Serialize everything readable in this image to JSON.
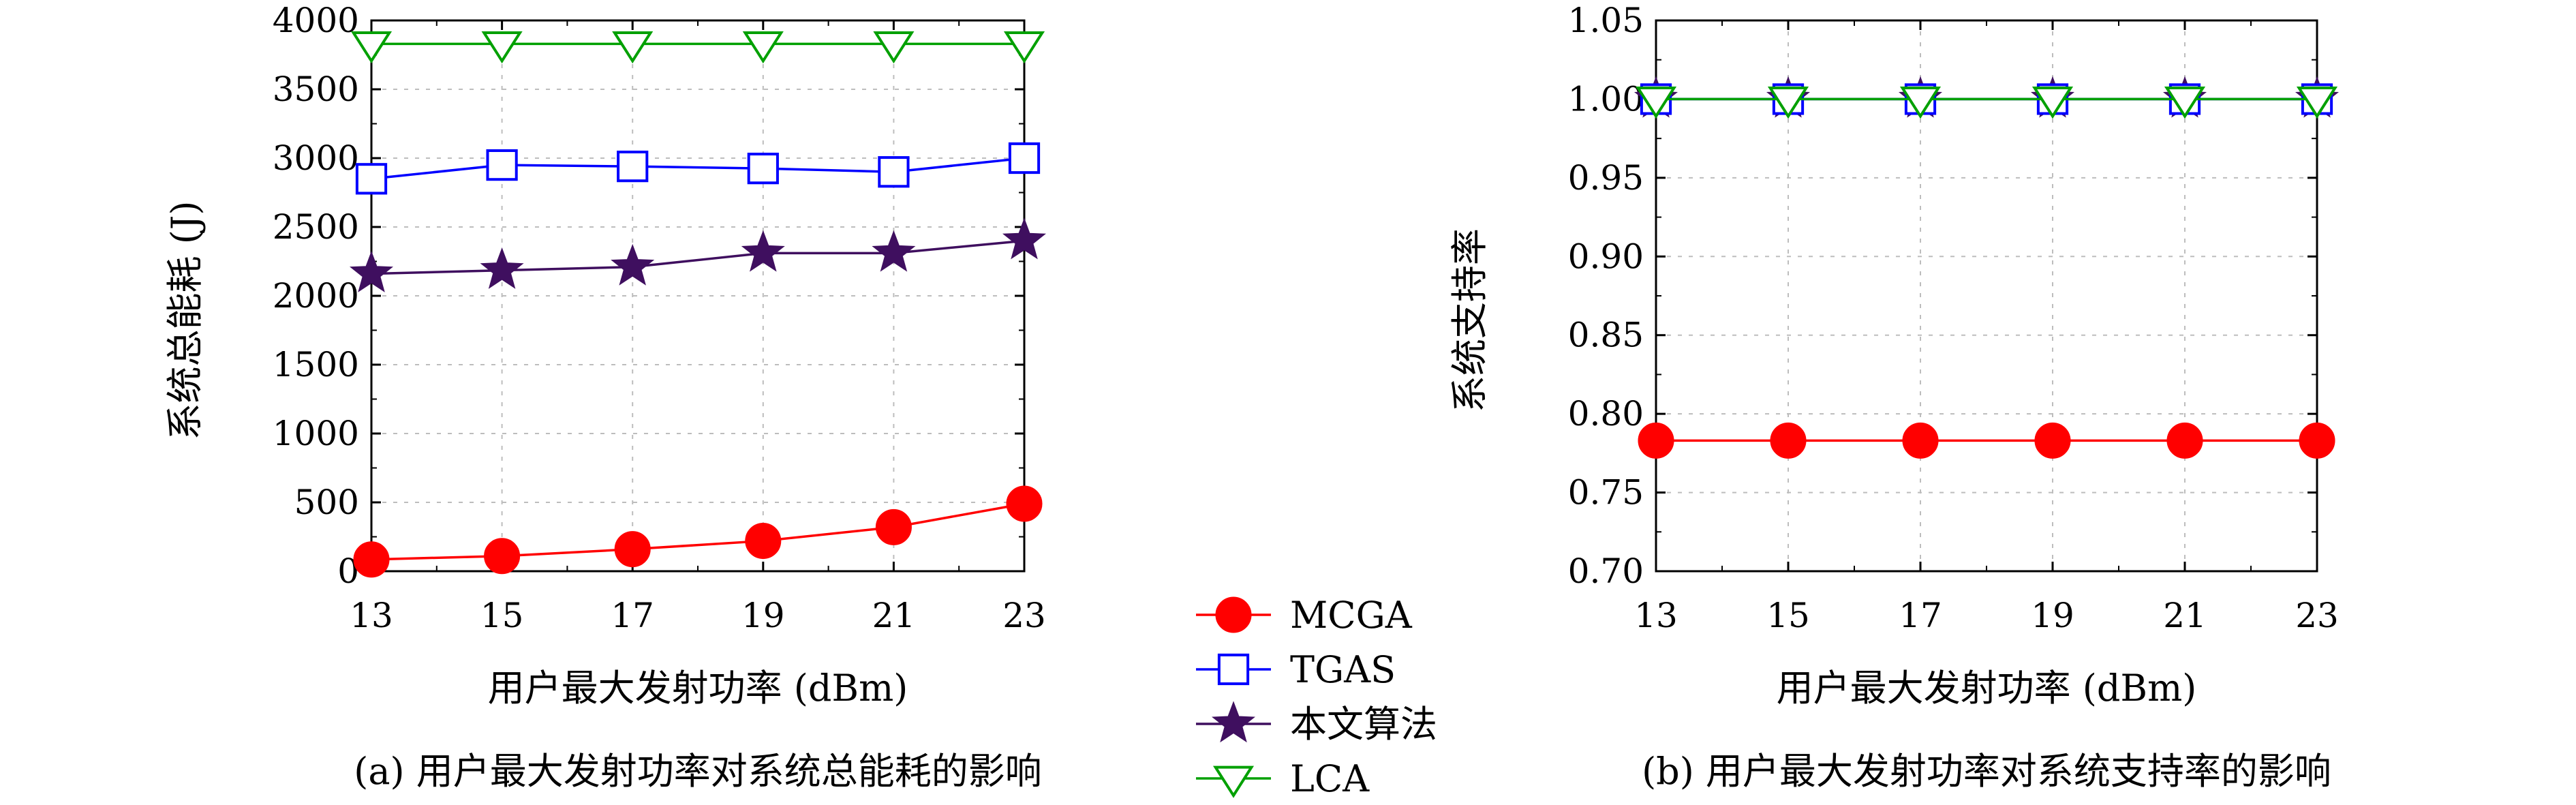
{
  "chart_data": [
    {
      "type": "line",
      "caption": "(a) 用户最大发射功率对系统总能耗的影响",
      "xlabel": "用户最大发射功率 (dBm)",
      "ylabel": "系统总能耗 (J)",
      "x": [
        13,
        15,
        17,
        19,
        21,
        23
      ],
      "x_ticks": [
        "13",
        "15",
        "17",
        "19",
        "21",
        "23"
      ],
      "xlim": [
        13,
        23
      ],
      "ylim": [
        0,
        4000
      ],
      "y_ticks": [
        "0",
        "500",
        "1000",
        "1500",
        "2000",
        "2500",
        "3000",
        "3500",
        "4000"
      ],
      "y_tick_values": [
        0,
        500,
        1000,
        1500,
        2000,
        2500,
        3000,
        3500,
        4000
      ],
      "grid": true,
      "series": [
        {
          "name": "MCGA",
          "marker": "filled-circle",
          "color": "#ff0000",
          "values": [
            85,
            110,
            160,
            220,
            320,
            490
          ]
        },
        {
          "name": "TGAS",
          "marker": "open-square",
          "color": "#0000ff",
          "values": [
            2850,
            2950,
            2940,
            2925,
            2900,
            3000
          ]
        },
        {
          "name": "本文算法",
          "marker": "filled-star",
          "color": "#3f0f5f",
          "values": [
            2160,
            2185,
            2210,
            2310,
            2310,
            2400
          ]
        },
        {
          "name": "LCA",
          "marker": "open-triangle-down",
          "color": "#00a000",
          "values": [
            3830,
            3830,
            3830,
            3830,
            3830,
            3830
          ]
        }
      ]
    },
    {
      "type": "line",
      "caption": "(b) 用户最大发射功率对系统支持率的影响",
      "xlabel": "用户最大发射功率 (dBm)",
      "ylabel": "系统支持率",
      "x": [
        13,
        15,
        17,
        19,
        21,
        23
      ],
      "x_ticks": [
        "13",
        "15",
        "17",
        "19",
        "21",
        "23"
      ],
      "xlim": [
        13,
        23
      ],
      "ylim": [
        0.7,
        1.05
      ],
      "y_ticks": [
        "0.70",
        "0.75",
        "0.80",
        "0.85",
        "0.90",
        "0.95",
        "1.00",
        "1.05"
      ],
      "y_tick_values": [
        0.7,
        0.75,
        0.8,
        0.85,
        0.9,
        0.95,
        1.0,
        1.05
      ],
      "grid": true,
      "series": [
        {
          "name": "MCGA",
          "marker": "filled-circle",
          "color": "#ff0000",
          "values": [
            0.783,
            0.783,
            0.783,
            0.783,
            0.783,
            0.783
          ]
        },
        {
          "name": "TGAS",
          "marker": "open-square",
          "color": "#0000ff",
          "values": [
            1.0,
            1.0,
            1.0,
            1.0,
            1.0,
            1.0
          ]
        },
        {
          "name": "本文算法",
          "marker": "filled-star",
          "color": "#3f0f5f",
          "values": [
            1.0,
            1.0,
            1.0,
            1.0,
            1.0,
            1.0
          ]
        },
        {
          "name": "LCA",
          "marker": "open-triangle-down",
          "color": "#00a000",
          "values": [
            1.0,
            1.0,
            1.0,
            1.0,
            1.0,
            1.0
          ]
        }
      ]
    }
  ],
  "legend": {
    "placement": "center-between-panels",
    "entries": [
      "MCGA",
      "TGAS",
      "本文算法",
      "LCA"
    ]
  }
}
